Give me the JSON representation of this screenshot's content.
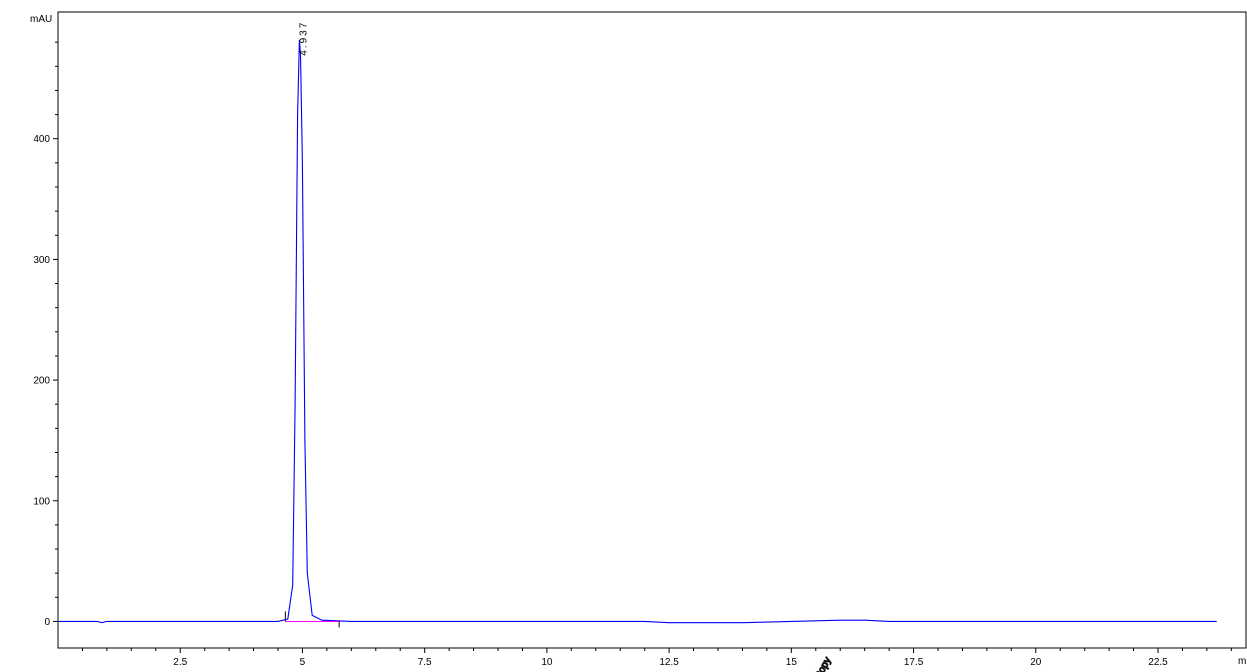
{
  "chart_data": {
    "type": "line",
    "title": "",
    "ylabel": "mAU",
    "xlabel": "m",
    "xlim": [
      0,
      24.3
    ],
    "ylim": [
      -22,
      505
    ],
    "x_ticks": [
      2.5,
      5,
      7.5,
      10,
      12.5,
      15,
      17.5,
      20,
      22.5
    ],
    "x_tick_labels": [
      "2.5",
      "5",
      "7.5",
      "10",
      "12.5",
      "15",
      "17.5",
      "20",
      "22.5"
    ],
    "y_ticks": [
      0,
      100,
      200,
      300,
      400
    ],
    "y_tick_labels": [
      "0",
      "100",
      "200",
      "300",
      "400"
    ],
    "grid": false,
    "series": [
      {
        "color": "#0000ff",
        "x": [
          0,
          0.5,
          0.8,
          0.9,
          1.0,
          2.0,
          3.0,
          4.0,
          4.5,
          4.7,
          4.8,
          4.85,
          4.9,
          4.937,
          4.96,
          5.0,
          5.05,
          5.1,
          5.2,
          5.4,
          6.0,
          8.0,
          10.0,
          12.0,
          12.5,
          13.0,
          14.0,
          15.0,
          16.0,
          16.5,
          17.0,
          18.0,
          19.0,
          20.0,
          21.0,
          22.0,
          23.0,
          23.7
        ],
        "y": [
          0,
          0,
          0,
          -1,
          0,
          0,
          0,
          0,
          0,
          2,
          30,
          180,
          420,
          482,
          470,
          380,
          150,
          40,
          5,
          1,
          0,
          0,
          0,
          0,
          -1,
          -1,
          -1,
          0,
          1,
          1,
          0,
          0,
          0,
          0,
          0,
          0,
          0,
          0
        ]
      }
    ],
    "baseline": {
      "color": "#ff00ff",
      "x": [
        4.65,
        5.75
      ],
      "y": [
        0,
        0
      ]
    },
    "integration_markers": [
      4.65,
      5.75
    ],
    "annotations": [
      {
        "text": "4.937",
        "x": 4.937,
        "y": 482
      }
    ],
    "watermark": {
      "text": "Copy",
      "color": "#000000"
    }
  }
}
